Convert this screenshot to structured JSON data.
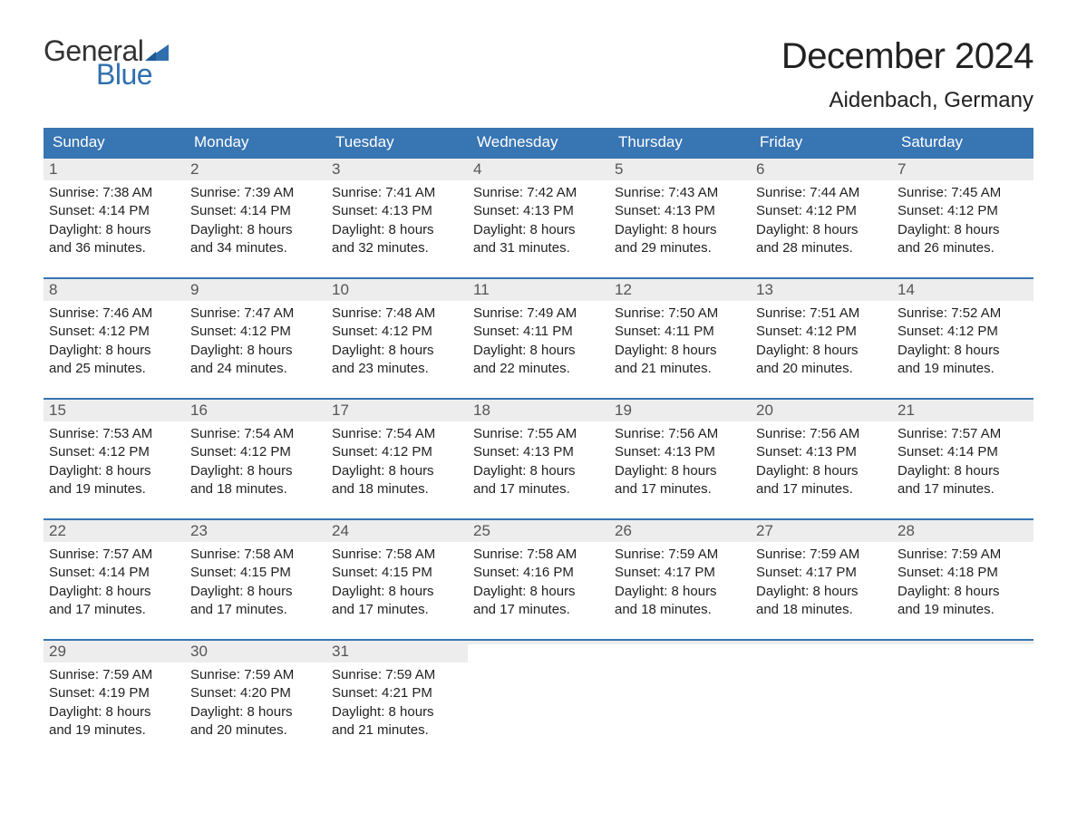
{
  "logo": {
    "word1": "General",
    "word2": "Blue",
    "word1_color": "#333333",
    "word2_color": "#2f6fae",
    "flag_color": "#2f6fae"
  },
  "title": {
    "month_year": "December 2024",
    "location": "Aidenbach, Germany",
    "title_fontsize": 40,
    "location_fontsize": 24,
    "title_color": "#222222"
  },
  "styling": {
    "header_bg": "#3875b3",
    "header_text_color": "#ffffff",
    "daynum_bg": "#ededed",
    "daynum_color": "#555555",
    "body_text_color": "#222222",
    "week_border_color": "#3875b3",
    "body_fontsize": 15,
    "dow_fontsize": 17,
    "page_bg": "#ffffff"
  },
  "days_of_week": [
    "Sunday",
    "Monday",
    "Tuesday",
    "Wednesday",
    "Thursday",
    "Friday",
    "Saturday"
  ],
  "labels": {
    "sunrise": "Sunrise:",
    "sunset": "Sunset:",
    "daylight_prefix": "Daylight:",
    "hours_word": "hours",
    "and_word": "and",
    "minutes_word": "minutes."
  },
  "weeks": [
    [
      {
        "day": 1,
        "sunrise": "7:38 AM",
        "sunset": "4:14 PM",
        "dl_h": 8,
        "dl_m": 36
      },
      {
        "day": 2,
        "sunrise": "7:39 AM",
        "sunset": "4:14 PM",
        "dl_h": 8,
        "dl_m": 34
      },
      {
        "day": 3,
        "sunrise": "7:41 AM",
        "sunset": "4:13 PM",
        "dl_h": 8,
        "dl_m": 32
      },
      {
        "day": 4,
        "sunrise": "7:42 AM",
        "sunset": "4:13 PM",
        "dl_h": 8,
        "dl_m": 31
      },
      {
        "day": 5,
        "sunrise": "7:43 AM",
        "sunset": "4:13 PM",
        "dl_h": 8,
        "dl_m": 29
      },
      {
        "day": 6,
        "sunrise": "7:44 AM",
        "sunset": "4:12 PM",
        "dl_h": 8,
        "dl_m": 28
      },
      {
        "day": 7,
        "sunrise": "7:45 AM",
        "sunset": "4:12 PM",
        "dl_h": 8,
        "dl_m": 26
      }
    ],
    [
      {
        "day": 8,
        "sunrise": "7:46 AM",
        "sunset": "4:12 PM",
        "dl_h": 8,
        "dl_m": 25
      },
      {
        "day": 9,
        "sunrise": "7:47 AM",
        "sunset": "4:12 PM",
        "dl_h": 8,
        "dl_m": 24
      },
      {
        "day": 10,
        "sunrise": "7:48 AM",
        "sunset": "4:12 PM",
        "dl_h": 8,
        "dl_m": 23
      },
      {
        "day": 11,
        "sunrise": "7:49 AM",
        "sunset": "4:11 PM",
        "dl_h": 8,
        "dl_m": 22
      },
      {
        "day": 12,
        "sunrise": "7:50 AM",
        "sunset": "4:11 PM",
        "dl_h": 8,
        "dl_m": 21
      },
      {
        "day": 13,
        "sunrise": "7:51 AM",
        "sunset": "4:12 PM",
        "dl_h": 8,
        "dl_m": 20
      },
      {
        "day": 14,
        "sunrise": "7:52 AM",
        "sunset": "4:12 PM",
        "dl_h": 8,
        "dl_m": 19
      }
    ],
    [
      {
        "day": 15,
        "sunrise": "7:53 AM",
        "sunset": "4:12 PM",
        "dl_h": 8,
        "dl_m": 19
      },
      {
        "day": 16,
        "sunrise": "7:54 AM",
        "sunset": "4:12 PM",
        "dl_h": 8,
        "dl_m": 18
      },
      {
        "day": 17,
        "sunrise": "7:54 AM",
        "sunset": "4:12 PM",
        "dl_h": 8,
        "dl_m": 18
      },
      {
        "day": 18,
        "sunrise": "7:55 AM",
        "sunset": "4:13 PM",
        "dl_h": 8,
        "dl_m": 17
      },
      {
        "day": 19,
        "sunrise": "7:56 AM",
        "sunset": "4:13 PM",
        "dl_h": 8,
        "dl_m": 17
      },
      {
        "day": 20,
        "sunrise": "7:56 AM",
        "sunset": "4:13 PM",
        "dl_h": 8,
        "dl_m": 17
      },
      {
        "day": 21,
        "sunrise": "7:57 AM",
        "sunset": "4:14 PM",
        "dl_h": 8,
        "dl_m": 17
      }
    ],
    [
      {
        "day": 22,
        "sunrise": "7:57 AM",
        "sunset": "4:14 PM",
        "dl_h": 8,
        "dl_m": 17
      },
      {
        "day": 23,
        "sunrise": "7:58 AM",
        "sunset": "4:15 PM",
        "dl_h": 8,
        "dl_m": 17
      },
      {
        "day": 24,
        "sunrise": "7:58 AM",
        "sunset": "4:15 PM",
        "dl_h": 8,
        "dl_m": 17
      },
      {
        "day": 25,
        "sunrise": "7:58 AM",
        "sunset": "4:16 PM",
        "dl_h": 8,
        "dl_m": 17
      },
      {
        "day": 26,
        "sunrise": "7:59 AM",
        "sunset": "4:17 PM",
        "dl_h": 8,
        "dl_m": 18
      },
      {
        "day": 27,
        "sunrise": "7:59 AM",
        "sunset": "4:17 PM",
        "dl_h": 8,
        "dl_m": 18
      },
      {
        "day": 28,
        "sunrise": "7:59 AM",
        "sunset": "4:18 PM",
        "dl_h": 8,
        "dl_m": 19
      }
    ],
    [
      {
        "day": 29,
        "sunrise": "7:59 AM",
        "sunset": "4:19 PM",
        "dl_h": 8,
        "dl_m": 19
      },
      {
        "day": 30,
        "sunrise": "7:59 AM",
        "sunset": "4:20 PM",
        "dl_h": 8,
        "dl_m": 20
      },
      {
        "day": 31,
        "sunrise": "7:59 AM",
        "sunset": "4:21 PM",
        "dl_h": 8,
        "dl_m": 21
      },
      null,
      null,
      null,
      null
    ]
  ]
}
